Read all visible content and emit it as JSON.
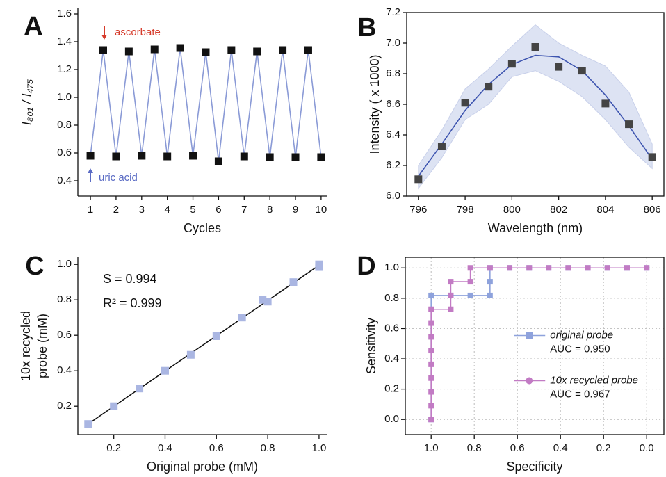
{
  "chart_data": [
    {
      "type": "line",
      "label": "A",
      "xlabel": "Cycles",
      "ylabel": "I₈₀₁ / I₄₇₅",
      "xlim": [
        0.51,
        10.22
      ],
      "ylim": [
        0.29,
        1.64
      ],
      "xticks": [
        1,
        2,
        3,
        4,
        5,
        6,
        7,
        8,
        9,
        10
      ],
      "yticks": [
        0.4,
        0.6,
        0.8,
        {
          "value": 1,
          "label": "1.0"
        },
        1.2,
        1.4,
        1.6
      ],
      "series": [
        {
          "color": "#8a9ad6",
          "marker_color": "#111111",
          "x": [
            1,
            1.5,
            2,
            2.5,
            3,
            3.5,
            4,
            4.5,
            5,
            5.5,
            6,
            6.5,
            7,
            7.5,
            8,
            8.5,
            9,
            9.5,
            10
          ],
          "values": [
            0.58,
            1.34,
            0.575,
            1.33,
            0.58,
            1.345,
            0.575,
            1.355,
            0.58,
            1.325,
            0.54,
            1.34,
            0.575,
            1.33,
            0.57,
            1.34,
            0.57,
            1.34,
            0.57
          ]
        }
      ],
      "annotations": [
        {
          "text": "ascorbate",
          "color": "#d63a2a"
        },
        {
          "text": "uric acid",
          "color": "#5a6bc4"
        }
      ]
    },
    {
      "type": "scatter",
      "label": "B",
      "xlabel": "Wavelength (nm)",
      "ylabel": "Intensity ( x 1000)",
      "xlim": [
        795.5,
        806.5
      ],
      "ylim": [
        6.0,
        7.2
      ],
      "xticks": [
        796,
        798,
        800,
        802,
        804,
        806
      ],
      "yticks": [
        {
          "value": 6,
          "label": "6.0"
        },
        6.2,
        6.4,
        6.6,
        6.8,
        {
          "value": 7,
          "label": "7.0"
        },
        7.2
      ],
      "series": [
        {
          "color": "#444444",
          "x": [
            796,
            797,
            798,
            799,
            800,
            801,
            802,
            803,
            804,
            805,
            806
          ],
          "values": [
            6.11,
            6.325,
            6.61,
            6.715,
            6.865,
            6.975,
            6.845,
            6.82,
            6.605,
            6.47,
            6.255
          ]
        }
      ],
      "fit": {
        "color": "#3e55b0",
        "x": [
          796,
          797,
          798,
          799,
          800,
          801,
          802,
          803,
          804,
          805,
          806
        ],
        "values": [
          6.13,
          6.34,
          6.56,
          6.73,
          6.86,
          6.92,
          6.91,
          6.82,
          6.66,
          6.46,
          6.24
        ]
      },
      "band": {
        "color": "#dde3f3",
        "x": [
          796,
          797,
          798,
          799,
          800,
          801,
          802,
          803,
          804,
          805,
          806
        ],
        "upper": [
          6.2,
          6.43,
          6.7,
          6.83,
          6.98,
          7.12,
          7.0,
          6.92,
          6.85,
          6.68,
          6.34
        ],
        "lower": [
          6.05,
          6.25,
          6.5,
          6.6,
          6.78,
          6.82,
          6.75,
          6.65,
          6.5,
          6.32,
          6.18
        ]
      }
    },
    {
      "type": "scatter",
      "label": "C",
      "xlabel": "Original probe (mM)",
      "ylabel": [
        "10x recycled",
        "probe (mM)"
      ],
      "xlim": [
        0.06,
        1.03
      ],
      "ylim": [
        0.04,
        1.04
      ],
      "xticks": [
        0.2,
        0.4,
        0.6,
        0.8,
        {
          "value": 1,
          "label": "1.0"
        }
      ],
      "yticks": [
        0.2,
        0.4,
        0.6,
        0.8,
        {
          "value": 1,
          "label": "1.0"
        }
      ],
      "series": [
        {
          "color": "#aab6e2",
          "x": [
            0.1,
            0.2,
            0.3,
            0.4,
            0.5,
            0.6,
            0.7,
            0.78,
            0.8,
            0.9,
            1.0,
            1.0
          ],
          "values": [
            0.1,
            0.2,
            0.3,
            0.4,
            0.49,
            0.595,
            0.7,
            0.8,
            0.79,
            0.9,
            0.985,
            1.0
          ]
        }
      ],
      "fit": {
        "color": "#111111",
        "x": [
          0.1,
          1.0
        ],
        "values": [
          0.1,
          0.995
        ]
      },
      "annotations": [
        {
          "text": "S = 0.994",
          "color": "#111111"
        },
        {
          "text": "R² = 0.999",
          "color": "#111111"
        }
      ]
    },
    {
      "type": "line",
      "label": "D",
      "xlabel": "Specificity",
      "ylabel": "Sensitivity",
      "xlim": [
        1.12,
        -0.08
      ],
      "ylim": [
        -0.1,
        1.07
      ],
      "grid": true,
      "legend": "center right",
      "xticks": [
        {
          "value": 1,
          "label": "1.0"
        },
        0.8,
        0.6,
        0.4,
        0.2,
        {
          "value": 0,
          "label": "0.0"
        }
      ],
      "yticks": [
        {
          "value": 0,
          "label": "0.0"
        },
        0.2,
        0.4,
        0.6,
        0.8,
        {
          "value": 1,
          "label": "1.0"
        }
      ],
      "series": [
        {
          "name": "original probe",
          "auc": "AUC = 0.950",
          "color": "#8ea2dc",
          "legend_marker": "square",
          "x": [
            1,
            1,
            0.909,
            0.818,
            0.727,
            0.727,
            0.727,
            0.636,
            0.545,
            0.455,
            0.364,
            0.273,
            0.182,
            0.091,
            0
          ],
          "values": [
            0,
            0.818,
            0.818,
            0.818,
            0.818,
            0.909,
            1,
            1,
            1,
            1,
            1,
            1,
            1,
            1,
            1
          ]
        },
        {
          "name": "10x recycled probe",
          "auc": "AUC = 0.967",
          "color": "#c27bc4",
          "legend_marker": "circle",
          "x": [
            1,
            1,
            1,
            1,
            1,
            1,
            1,
            1,
            1,
            0.909,
            0.909,
            0.909,
            0.818,
            0.818,
            0.727,
            0.636,
            0.545,
            0.455,
            0.364,
            0.273,
            0.182,
            0.091,
            0
          ],
          "values": [
            0,
            0.091,
            0.182,
            0.273,
            0.364,
            0.455,
            0.545,
            0.636,
            0.727,
            0.727,
            0.818,
            0.909,
            0.909,
            1,
            1,
            1,
            1,
            1,
            1,
            1,
            1,
            1,
            1
          ]
        }
      ]
    }
  ]
}
